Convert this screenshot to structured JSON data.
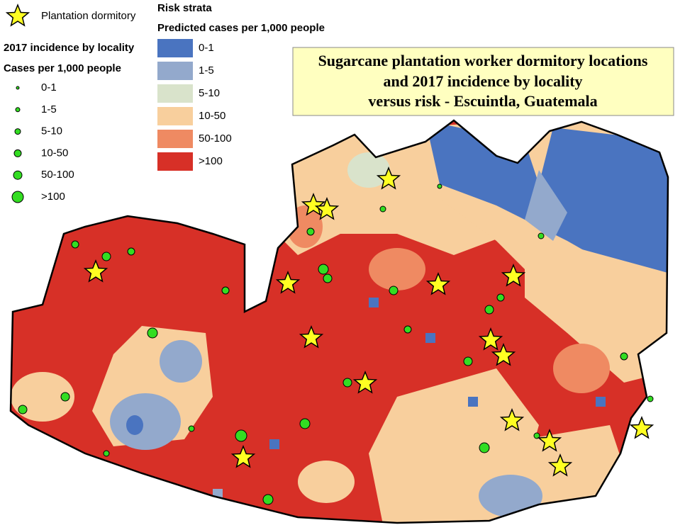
{
  "dormitory_legend": {
    "label": "Plantation dormitory"
  },
  "incidence_legend": {
    "title": "2017 incidence by locality",
    "subtitle": "Cases per 1,000 people",
    "classes": [
      "0-1",
      "1-5",
      "5-10",
      "10-50",
      "50-100",
      ">100"
    ],
    "color": "#33dd22"
  },
  "risk_legend": {
    "title": "Risk strata",
    "subtitle": "Predicted cases per 1,000 people",
    "classes": [
      {
        "label": "0-1",
        "color": "#4a74c0"
      },
      {
        "label": "1-5",
        "color": "#93a9cc"
      },
      {
        "label": "5-10",
        "color": "#d9e3cb"
      },
      {
        "label": "10-50",
        "color": "#f8cf9d"
      },
      {
        "label": "50-100",
        "color": "#ef8a62"
      },
      {
        "label": ">100",
        "color": "#d73027"
      }
    ]
  },
  "title": {
    "lines": [
      "Sugarcane plantation worker dormitory locations",
      "and 2017 incidence by locality",
      "versus risk - Escuintla, Guatemala"
    ]
  }
}
